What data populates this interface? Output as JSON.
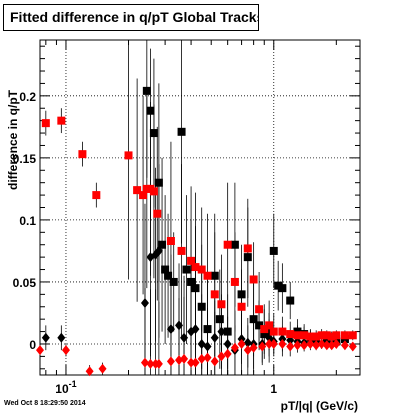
{
  "title": "Fitted difference in q/pT  Global Tracks",
  "timestamp": "Wed Oct  8 18:29:50 2014",
  "colors": {
    "series_black": "#000000",
    "series_red": "#ff0000",
    "grid": "#000000"
  },
  "chart_data": {
    "type": "scatter",
    "title": "Fitted difference in q/pT  Global Tracks",
    "xlabel": "pT/|q| (GeV/c)",
    "ylabel": "difference in q/pT",
    "x_scale": "log",
    "xlim": [
      0.075,
      2.6
    ],
    "ylim": [
      -0.025,
      0.245
    ],
    "x_ticks": [
      {
        "value": 0.1,
        "label": "10",
        "exp": "-1"
      },
      {
        "value": 1,
        "label": "1",
        "exp": ""
      }
    ],
    "y_ticks": [
      {
        "value": 0,
        "label": "0"
      },
      {
        "value": 0.05,
        "label": "0.05"
      },
      {
        "value": 0.1,
        "label": "0.1"
      },
      {
        "value": 0.15,
        "label": "0.15"
      },
      {
        "value": 0.2,
        "label": "0.2"
      }
    ],
    "grid": true,
    "series": [
      {
        "marker": "square",
        "color": "black",
        "x": [
          0.245,
          0.255,
          0.265,
          0.28,
          0.29,
          0.3,
          0.31,
          0.33,
          0.36,
          0.38,
          0.4,
          0.42,
          0.45,
          0.48,
          0.52,
          0.55,
          0.6,
          0.65,
          0.7,
          0.75,
          0.8,
          0.85,
          0.9,
          0.95,
          1.0,
          1.05,
          1.1,
          1.2,
          1.3,
          1.4,
          1.5,
          1.6,
          1.8,
          2.0,
          2.2
        ],
        "y": [
          0.204,
          0.188,
          0.17,
          0.13,
          0.08,
          0.06,
          0.055,
          0.05,
          0.171,
          0.06,
          0.05,
          0.045,
          0.03,
          0.012,
          0.055,
          0.02,
          0.01,
          0.08,
          0.04,
          0.07,
          0.02,
          0.015,
          0.008,
          0.01,
          0.075,
          0.047,
          0.045,
          0.035,
          0.01,
          0.008,
          0.005,
          0.004,
          0.003,
          0.002,
          0.004
        ],
        "err": [
          0.07,
          0.05,
          0.06,
          0.08,
          0.07,
          0.06,
          0.05,
          0.04,
          0.09,
          0.06,
          0.05,
          0.05,
          0.05,
          0.04,
          0.05,
          0.04,
          0.03,
          0.05,
          0.04,
          0.04,
          0.03,
          0.02,
          0.02,
          0.015,
          0.03,
          0.02,
          0.02,
          0.015,
          0.01,
          0.008,
          0.006,
          0.005,
          0.004,
          0.003,
          0.003
        ]
      },
      {
        "marker": "diamond",
        "color": "black",
        "x": [
          0.08,
          0.095,
          0.24,
          0.255,
          0.27,
          0.28,
          0.32,
          0.35,
          0.37,
          0.4,
          0.42,
          0.45,
          0.48,
          0.52,
          0.56,
          0.6,
          0.65,
          0.7,
          0.75,
          0.8,
          0.88,
          0.95,
          1.0,
          1.1,
          1.2,
          1.3,
          1.4,
          1.6,
          1.8,
          2.0
        ],
        "y": [
          0.005,
          0.005,
          0.033,
          0.07,
          0.072,
          0.075,
          0.012,
          0.015,
          0.005,
          0.01,
          0.012,
          0.0,
          -0.002,
          0.005,
          0.01,
          0.0,
          -0.005,
          0.004,
          0.001,
          0.0,
          0.0,
          0.005,
          0.002,
          0.004,
          0.003,
          0.002,
          0.001,
          0.002,
          0.001,
          0.001
        ],
        "err": [
          0.01,
          0.01,
          0.08,
          0.08,
          0.07,
          0.07,
          0.06,
          0.05,
          0.05,
          0.05,
          0.04,
          0.04,
          0.03,
          0.03,
          0.03,
          0.03,
          0.02,
          0.02,
          0.02,
          0.02,
          0.015,
          0.015,
          0.01,
          0.01,
          0.008,
          0.006,
          0.005,
          0.004,
          0.003,
          0.003
        ]
      },
      {
        "marker": "square",
        "color": "red",
        "x": [
          0.08,
          0.095,
          0.12,
          0.14,
          0.2,
          0.22,
          0.235,
          0.245,
          0.255,
          0.265,
          0.275,
          0.32,
          0.36,
          0.4,
          0.42,
          0.45,
          0.48,
          0.52,
          0.56,
          0.6,
          0.65,
          0.7,
          0.75,
          0.8,
          0.85,
          0.9,
          0.95,
          1.0,
          1.1,
          1.2,
          1.3,
          1.4,
          1.5,
          1.6,
          1.7,
          1.8,
          1.9,
          2.0,
          2.2,
          2.4
        ],
        "y": [
          0.178,
          0.18,
          0.153,
          0.12,
          0.152,
          0.124,
          0.12,
          0.125,
          0.125,
          0.123,
          0.105,
          0.083,
          0.075,
          0.067,
          0.062,
          0.06,
          0.055,
          0.04,
          0.032,
          0.08,
          0.05,
          0.03,
          0.077,
          0.052,
          0.028,
          0.012,
          0.015,
          0.01,
          0.01,
          0.008,
          0.007,
          0.007,
          0.006,
          0.006,
          0.007,
          0.007,
          0.006,
          0.007,
          0.007,
          0.007
        ],
        "err": [
          0.01,
          0.01,
          0.01,
          0.01,
          0.1,
          0.09,
          0.08,
          0.08,
          0.07,
          0.07,
          0.07,
          0.08,
          0.07,
          0.06,
          0.06,
          0.05,
          0.05,
          0.05,
          0.04,
          0.05,
          0.04,
          0.03,
          0.04,
          0.03,
          0.03,
          0.02,
          0.02,
          0.015,
          0.012,
          0.01,
          0.008,
          0.007,
          0.006,
          0.005,
          0.005,
          0.004,
          0.004,
          0.004,
          0.004,
          0.004
        ]
      },
      {
        "marker": "diamond",
        "color": "red",
        "x": [
          0.075,
          0.1,
          0.13,
          0.15,
          0.24,
          0.255,
          0.27,
          0.28,
          0.32,
          0.35,
          0.37,
          0.4,
          0.42,
          0.45,
          0.48,
          0.52,
          0.56,
          0.6,
          0.65,
          0.7,
          0.75,
          0.8,
          0.88,
          0.95,
          1.0,
          1.1,
          1.2,
          1.3,
          1.4,
          1.5,
          1.6,
          1.7,
          1.8,
          1.9,
          2.0,
          2.2,
          2.4
        ],
        "y": [
          -0.005,
          -0.005,
          -0.022,
          -0.02,
          -0.015,
          -0.016,
          -0.016,
          -0.016,
          -0.014,
          -0.013,
          -0.012,
          -0.015,
          -0.015,
          -0.012,
          -0.011,
          -0.014,
          -0.01,
          -0.008,
          -0.003,
          0.0,
          -0.005,
          -0.003,
          -0.002,
          0.0,
          0.0,
          0.0,
          -0.002,
          -0.001,
          -0.001,
          0.0,
          -0.001,
          0.0,
          -0.001,
          -0.001,
          0.0,
          -0.001,
          -0.002
        ],
        "err": [
          0.005,
          0.005,
          0.005,
          0.005,
          0.06,
          0.06,
          0.06,
          0.05,
          0.06,
          0.05,
          0.05,
          0.05,
          0.04,
          0.04,
          0.04,
          0.04,
          0.03,
          0.03,
          0.03,
          0.025,
          0.02,
          0.02,
          0.015,
          0.015,
          0.01,
          0.01,
          0.008,
          0.006,
          0.005,
          0.005,
          0.004,
          0.004,
          0.003,
          0.003,
          0.003,
          0.003,
          0.003
        ]
      }
    ]
  }
}
